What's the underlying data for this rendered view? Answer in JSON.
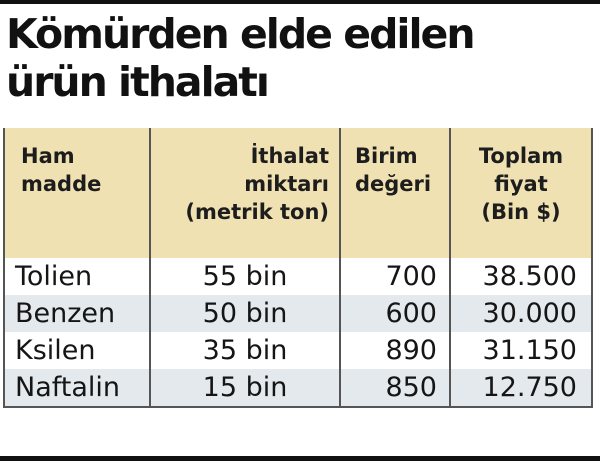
{
  "title_lines": [
    "Kömürden elde edilen",
    "ürün ithalatı"
  ],
  "table": {
    "headers": {
      "ham_madde": [
        "Ham",
        "madde"
      ],
      "ithalat": [
        "İthalat",
        "miktarı",
        "(metrik ton)"
      ],
      "birim": [
        "Birim",
        "değeri"
      ],
      "toplam": [
        "Toplam",
        "fiyat",
        "(Bin $)"
      ]
    },
    "rows": [
      {
        "ham_madde": "Tolien",
        "ithalat": "55 bin",
        "birim": "700",
        "toplam": "38.500"
      },
      {
        "ham_madde": "Benzen",
        "ithalat": "50 bin",
        "birim": "600",
        "toplam": "30.000"
      },
      {
        "ham_madde": "Ksilen",
        "ithalat": "35 bin",
        "birim": "890",
        "toplam": "31.150"
      },
      {
        "ham_madde": "Naftalin",
        "ithalat": "15 bin",
        "birim": "850",
        "toplam": "12.750"
      }
    ]
  },
  "colors": {
    "header_fill": "#efe1b1",
    "row_alt_fill": "#e4e9ee",
    "grid_line": "#555555",
    "rule": "#111111"
  }
}
